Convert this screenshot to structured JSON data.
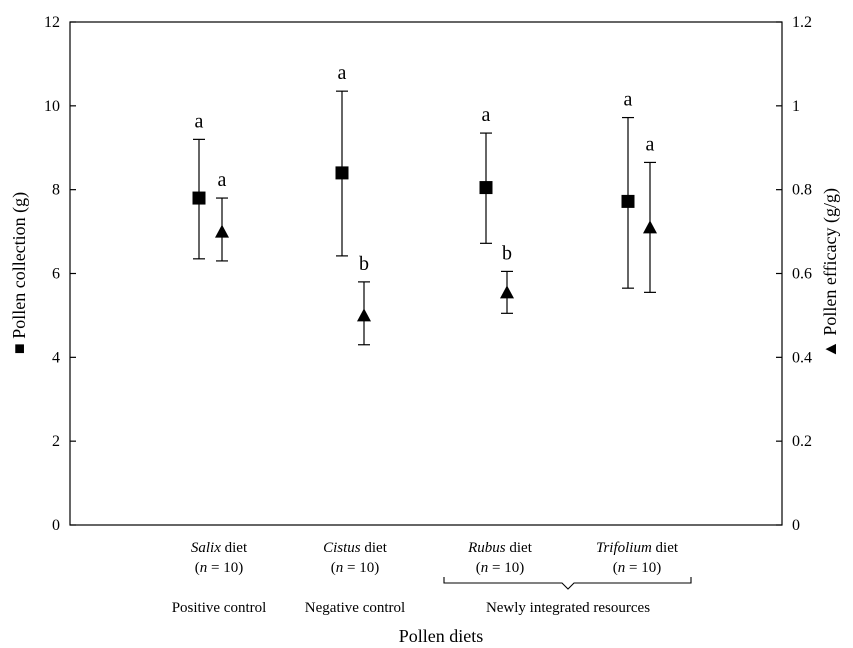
{
  "chart_data": {
    "type": "scatter",
    "xlabel": "Pollen diets",
    "ylabel_left": "■ Pollen collection (g)",
    "ylabel_right": "▲ Pollen efficacy (g/g)",
    "ylim_left": [
      0,
      12
    ],
    "ylim_right": [
      0,
      1.2
    ],
    "yticks_left": [
      "0",
      "2",
      "4",
      "6",
      "8",
      "10",
      "12"
    ],
    "yticks_right": [
      "0",
      "0.2",
      "0.4",
      "0.6",
      "0.8",
      "1",
      "1.2"
    ],
    "grid": false,
    "categories": [
      {
        "name": "Salix",
        "suffix": " diet",
        "n_label": "(n = 10)"
      },
      {
        "name": "Cistus",
        "suffix": " diet",
        "n_label": "(n = 10)"
      },
      {
        "name": "Rubus",
        "suffix": " diet",
        "n_label": "(n = 10)"
      },
      {
        "name": "Trifolium",
        "suffix": " diet",
        "n_label": "(n = 10)"
      }
    ],
    "group_labels": [
      "Positive control",
      "Negative control",
      "Newly integrated resources"
    ],
    "series": [
      {
        "name": "Pollen collection (g)",
        "marker": "square",
        "axis": "left",
        "values": [
          7.8,
          8.4,
          8.05,
          7.72
        ],
        "error_low": [
          6.35,
          6.42,
          6.72,
          5.65
        ],
        "error_high": [
          9.2,
          10.35,
          9.35,
          9.72
        ],
        "letters": [
          "a",
          "a",
          "a",
          "a"
        ]
      },
      {
        "name": "Pollen efficacy (g/g)",
        "marker": "triangle",
        "axis": "right",
        "values": [
          0.7,
          0.5,
          0.555,
          0.71
        ],
        "error_low": [
          0.63,
          0.43,
          0.505,
          0.555
        ],
        "error_high": [
          0.78,
          0.58,
          0.605,
          0.865
        ],
        "letters": [
          "a",
          "b",
          "b",
          "a"
        ]
      }
    ]
  }
}
